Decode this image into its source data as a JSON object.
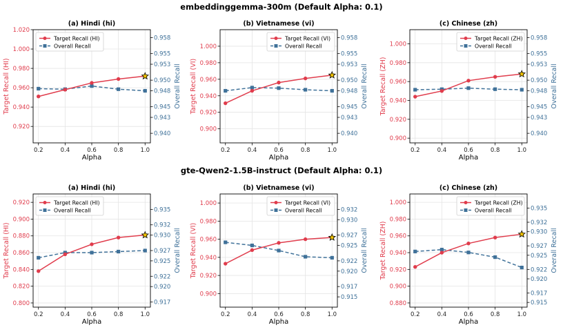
{
  "figure": {
    "rows": [
      {
        "title": "embeddinggemma-300m (Default Alpha: 0.1)"
      },
      {
        "title": "gte-Qwen2-1.5B-instruct (Default Alpha: 0.1)"
      }
    ]
  },
  "colors": {
    "target": "#e03c4c",
    "overall": "#3f7199",
    "star": "#f2c400"
  },
  "chart_data": [
    {
      "type": "line",
      "row": 0,
      "title": "(a) Hindi (hi)",
      "xlabel": "Alpha",
      "ylabel": "Target Recall (HI)",
      "y2label": "Overall Recall",
      "x": [
        0.2,
        0.4,
        0.6,
        0.8,
        1.0
      ],
      "xticks": [
        "0.2",
        "0.4",
        "0.6",
        "0.8",
        "1.0"
      ],
      "ylim": [
        0.903,
        1.02
      ],
      "yticks": [
        "0.920",
        "0.940",
        "0.960",
        "0.980",
        "1.000",
        "1.020"
      ],
      "y2lim": [
        0.9382,
        0.9595
      ],
      "y2ticks": [
        "0.940",
        "0.943",
        "0.945",
        "0.948",
        "0.950",
        "0.953",
        "0.955",
        "0.958"
      ],
      "legend": "top-left",
      "series": [
        {
          "name": "Target Recall (HI)",
          "axis": "left",
          "values": [
            0.951,
            0.958,
            0.965,
            0.969,
            0.972
          ]
        },
        {
          "name": "Overall Recall",
          "axis": "right",
          "values": [
            0.9484,
            0.9483,
            0.9489,
            0.9483,
            0.948
          ]
        }
      ],
      "best_marker": {
        "x": 1.0,
        "series": "target"
      }
    },
    {
      "type": "line",
      "row": 0,
      "title": "(b) Vietnamese (vi)",
      "xlabel": "Alpha",
      "ylabel": "Target Recall (VI)",
      "y2label": "Overall Recall",
      "x": [
        0.2,
        0.4,
        0.6,
        0.8,
        1.0
      ],
      "xticks": [
        "0.2",
        "0.4",
        "0.6",
        "0.8",
        "1.0"
      ],
      "ylim": [
        0.883,
        1.02
      ],
      "yticks": [
        "0.900",
        "0.920",
        "0.940",
        "0.960",
        "0.980",
        "1.000"
      ],
      "y2lim": [
        0.9382,
        0.9595
      ],
      "y2ticks": [
        "0.940",
        "0.943",
        "0.945",
        "0.948",
        "0.950",
        "0.953",
        "0.955",
        "0.958"
      ],
      "legend": "top-right",
      "series": [
        {
          "name": "Target Recall (VI)",
          "axis": "left",
          "values": [
            0.931,
            0.946,
            0.956,
            0.961,
            0.965
          ]
        },
        {
          "name": "Overall Recall",
          "axis": "right",
          "values": [
            0.948,
            0.9486,
            0.9485,
            0.9482,
            0.948
          ]
        }
      ],
      "best_marker": {
        "x": 1.0,
        "series": "target"
      }
    },
    {
      "type": "line",
      "row": 0,
      "title": "(c) Chinese (zh)",
      "xlabel": "Alpha",
      "ylabel": "Target Recall (ZH)",
      "y2label": "Overall Recall",
      "x": [
        0.2,
        0.4,
        0.6,
        0.8,
        1.0
      ],
      "xticks": [
        "0.2",
        "0.4",
        "0.6",
        "0.8",
        "1.0"
      ],
      "ylim": [
        0.895,
        1.015
      ],
      "yticks": [
        "0.900",
        "0.920",
        "0.940",
        "0.960",
        "0.980",
        "1.000"
      ],
      "y2lim": [
        0.9382,
        0.9595
      ],
      "y2ticks": [
        "0.940",
        "0.943",
        "0.945",
        "0.948",
        "0.950",
        "0.953",
        "0.955",
        "0.958"
      ],
      "legend": "top-right",
      "series": [
        {
          "name": "Target Recall (ZH)",
          "axis": "left",
          "values": [
            0.944,
            0.95,
            0.961,
            0.965,
            0.968
          ]
        },
        {
          "name": "Overall Recall",
          "axis": "right",
          "values": [
            0.9482,
            0.9483,
            0.9485,
            0.9483,
            0.9482
          ]
        }
      ],
      "best_marker": {
        "x": 1.0,
        "series": "target"
      }
    },
    {
      "type": "line",
      "row": 1,
      "title": "(a) Hindi (hi)",
      "xlabel": "Alpha",
      "ylabel": "Target Recall (HI)",
      "y2label": "Overall Recall",
      "x": [
        0.2,
        0.4,
        0.6,
        0.8,
        1.0
      ],
      "xticks": [
        "0.2",
        "0.4",
        "0.6",
        "0.8",
        "1.0"
      ],
      "ylim": [
        0.795,
        0.93
      ],
      "yticks": [
        "0.800",
        "0.820",
        "0.840",
        "0.860",
        "0.880",
        "0.900",
        "0.920"
      ],
      "y2lim": [
        0.916,
        0.938
      ],
      "y2ticks": [
        "0.917",
        "0.920",
        "0.922",
        "0.925",
        "0.927",
        "0.930",
        "0.932",
        "0.935"
      ],
      "legend": "top-left",
      "series": [
        {
          "name": "Target Recall (HI)",
          "axis": "left",
          "values": [
            0.838,
            0.858,
            0.87,
            0.878,
            0.881
          ]
        },
        {
          "name": "Overall Recall",
          "axis": "right",
          "values": [
            0.9256,
            0.9266,
            0.9266,
            0.9268,
            0.927
          ]
        }
      ],
      "best_marker": {
        "x": 1.0,
        "series": "target"
      }
    },
    {
      "type": "line",
      "row": 1,
      "title": "(b) Vietnamese (vi)",
      "xlabel": "Alpha",
      "ylabel": "Target Recall (VI)",
      "y2label": "Overall Recall",
      "x": [
        0.2,
        0.4,
        0.6,
        0.8,
        1.0
      ],
      "xticks": [
        "0.2",
        "0.4",
        "0.6",
        "0.8",
        "1.0"
      ],
      "ylim": [
        0.885,
        1.01
      ],
      "yticks": [
        "0.900",
        "0.920",
        "0.940",
        "0.960",
        "0.980",
        "1.000"
      ],
      "y2lim": [
        0.913,
        0.935
      ],
      "y2ticks": [
        "0.915",
        "0.917",
        "0.920",
        "0.922",
        "0.925",
        "0.927",
        "0.930",
        "0.932"
      ],
      "legend": "top-right",
      "series": [
        {
          "name": "Target Recall (VI)",
          "axis": "left",
          "values": [
            0.933,
            0.948,
            0.956,
            0.96,
            0.962
          ]
        },
        {
          "name": "Overall Recall",
          "axis": "right",
          "values": [
            0.9256,
            0.925,
            0.924,
            0.9228,
            0.9226
          ]
        }
      ],
      "best_marker": {
        "x": 1.0,
        "series": "target"
      }
    },
    {
      "type": "line",
      "row": 1,
      "title": "(c) Chinese (zh)",
      "xlabel": "Alpha",
      "ylabel": "Target Recall (ZH)",
      "y2label": "Overall Recall",
      "x": [
        0.2,
        0.4,
        0.6,
        0.8,
        1.0
      ],
      "xticks": [
        "0.2",
        "0.4",
        "0.6",
        "0.8",
        "1.0"
      ],
      "ylim": [
        0.875,
        1.01
      ],
      "yticks": [
        "0.880",
        "0.900",
        "0.920",
        "0.940",
        "0.960",
        "0.980",
        "1.000"
      ],
      "y2lim": [
        0.914,
        0.938
      ],
      "y2ticks": [
        "0.915",
        "0.917",
        "0.920",
        "0.922",
        "0.925",
        "0.927",
        "0.930",
        "0.932",
        "0.935"
      ],
      "legend": "top-right",
      "series": [
        {
          "name": "Target Recall (ZH)",
          "axis": "left",
          "values": [
            0.923,
            0.94,
            0.951,
            0.958,
            0.962
          ]
        },
        {
          "name": "Overall Recall",
          "axis": "right",
          "values": [
            0.9258,
            0.9262,
            0.9256,
            0.9246,
            0.9224
          ]
        }
      ],
      "best_marker": {
        "x": 1.0,
        "series": "target"
      }
    }
  ]
}
